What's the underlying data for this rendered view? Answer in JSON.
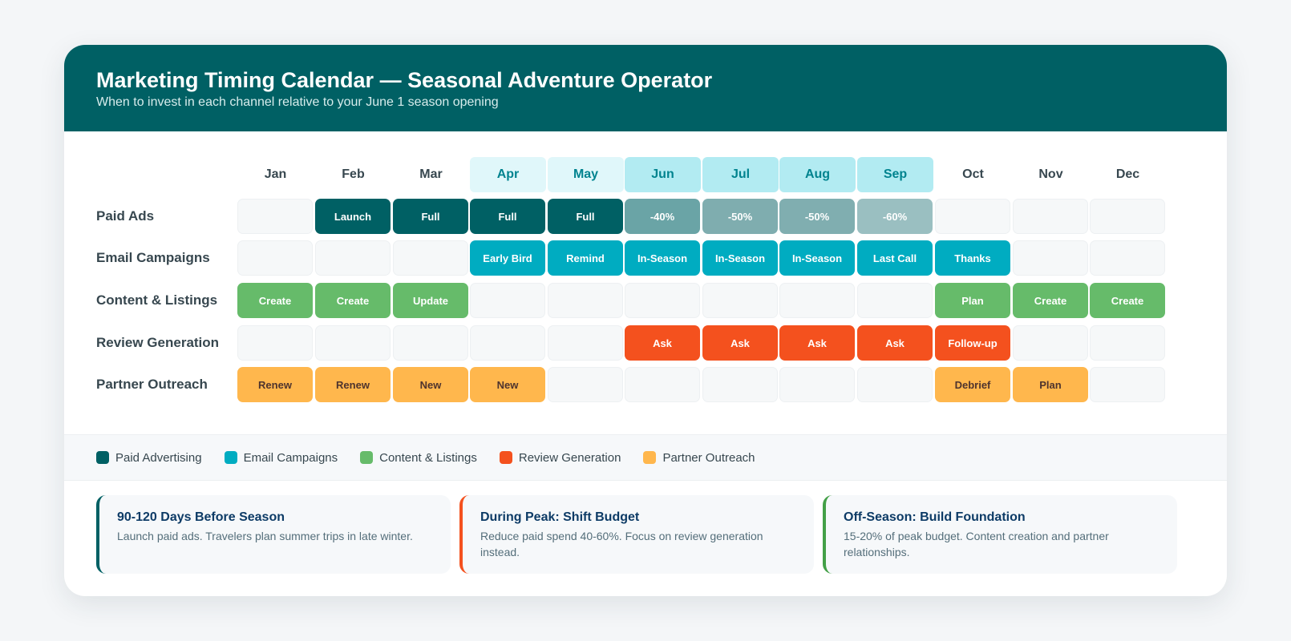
{
  "header": {
    "title": "Marketing Timing Calendar — Seasonal Adventure Operator",
    "subtitle": "When to invest in each channel relative to your June 1 season opening"
  },
  "months": [
    "Jan",
    "Feb",
    "Mar",
    "Apr",
    "May",
    "Jun",
    "Jul",
    "Aug",
    "Sep",
    "Oct",
    "Nov",
    "Dec"
  ],
  "month_highlight": [
    "",
    "",
    "",
    "pre",
    "pre",
    "peak",
    "peak",
    "peak",
    "peak",
    "",
    "",
    ""
  ],
  "rows": [
    {
      "label": "Paid Ads",
      "color": "#006064",
      "cells": [
        "",
        "Launch",
        "Full",
        "Full",
        "Full",
        "-40%",
        "-50%",
        "-50%",
        "-60%",
        "",
        "",
        ""
      ],
      "cell_colors": [
        "",
        "#006064",
        "#006064",
        "#006064",
        "#006064",
        "#6aa4a6",
        "#7fadaf",
        "#80aeb0",
        "#9abfc1",
        "",
        "",
        ""
      ]
    },
    {
      "label": "Email Campaigns",
      "color": "#00acc1",
      "cells": [
        "",
        "",
        "",
        "Early Bird",
        "Remind",
        "In-Season",
        "In-Season",
        "In-Season",
        "Last Call",
        "Thanks",
        "",
        ""
      ]
    },
    {
      "label": "Content & Listings",
      "color": "#66bb6a",
      "cells": [
        "Create",
        "Create",
        "Update",
        "",
        "",
        "",
        "",
        "",
        "",
        "Plan",
        "Create",
        "Create"
      ]
    },
    {
      "label": "Review Generation",
      "color": "#f4511e",
      "cells": [
        "",
        "",
        "",
        "",
        "",
        "Ask",
        "Ask",
        "Ask",
        "Ask",
        "Follow-up",
        "",
        ""
      ]
    },
    {
      "label": "Partner Outreach",
      "color": "#ffb74d",
      "text_color": "#4e342e",
      "cells": [
        "Renew",
        "Renew",
        "New",
        "New",
        "",
        "",
        "",
        "",
        "",
        "Debrief",
        "Plan",
        ""
      ]
    }
  ],
  "legend": [
    {
      "label": "Paid Advertising",
      "color": "#006064"
    },
    {
      "label": "Email Campaigns",
      "color": "#00acc1"
    },
    {
      "label": "Content & Listings",
      "color": "#66bb6a"
    },
    {
      "label": "Review Generation",
      "color": "#f4511e"
    },
    {
      "label": "Partner Outreach",
      "color": "#ffb74d"
    }
  ],
  "tips": [
    {
      "title": "90-120 Days Before Season",
      "text": "Launch paid ads. Travelers plan summer trips in late winter.",
      "accent": "#006064"
    },
    {
      "title": "During Peak: Shift Budget",
      "text": "Reduce paid spend 40-60%. Focus on review generation instead.",
      "accent": "#f4511e"
    },
    {
      "title": "Off-Season: Build Foundation",
      "text": "15-20% of peak budget. Content creation and partner relationships.",
      "accent": "#43a047"
    }
  ]
}
